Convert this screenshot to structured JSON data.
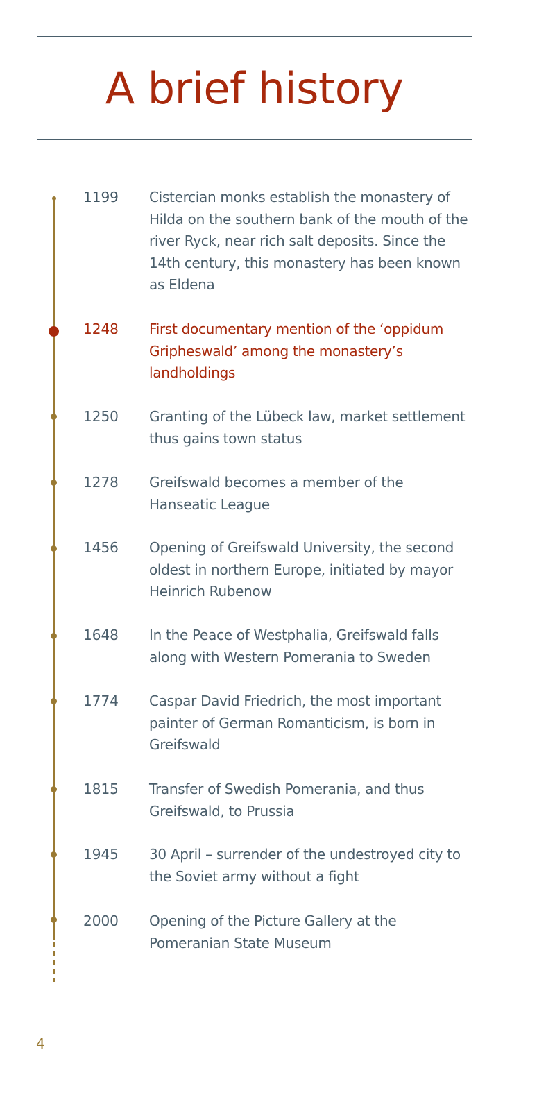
{
  "title": "A brief history",
  "events": [
    {
      "year": "1199",
      "text": "Cistercian monks establish the monastery of Hilda on the southern bank of the mouth of the river Ryck, near rich salt deposits. Since the 14th century, this monastery has been known as Eldena"
    },
    {
      "year": "1248",
      "text": "First documentary mention of the ‘oppidum Gripheswald’ among the monastery’s landholdings"
    },
    {
      "year": "1250",
      "text": "Granting of the Lübeck law, market settlement thus gains town status"
    },
    {
      "year": "1278",
      "text": "Greifswald becomes a member of the Hanseatic League"
    },
    {
      "year": "1456",
      "text": "Opening of Greifswald University, the second oldest in northern Europe, initiated by mayor Heinrich Rubenow"
    },
    {
      "year": "1648",
      "text": "In the Peace of Westphalia, Greifswald falls along with Western Pomerania to Sweden"
    },
    {
      "year": "1774",
      "text": "Caspar David Friedrich, the most important painter of German Romanticism, is born in Greifswald"
    },
    {
      "year": "1815",
      "text": "Transfer of Swedish Pomerania, and thus Greifswald, to Prussia"
    },
    {
      "year": "1945",
      "text": "30 April – surrender of the undestroyed city to the Soviet army without a fight"
    },
    {
      "year": "2000",
      "text": "Opening of the Picture Gallery at the Pomeranian State Museum"
    }
  ],
  "page_number": "4",
  "colors": {
    "accent_red": "#a8290c",
    "timeline_gold": "#9a7a34",
    "text_slate": "#4a5e6b"
  }
}
